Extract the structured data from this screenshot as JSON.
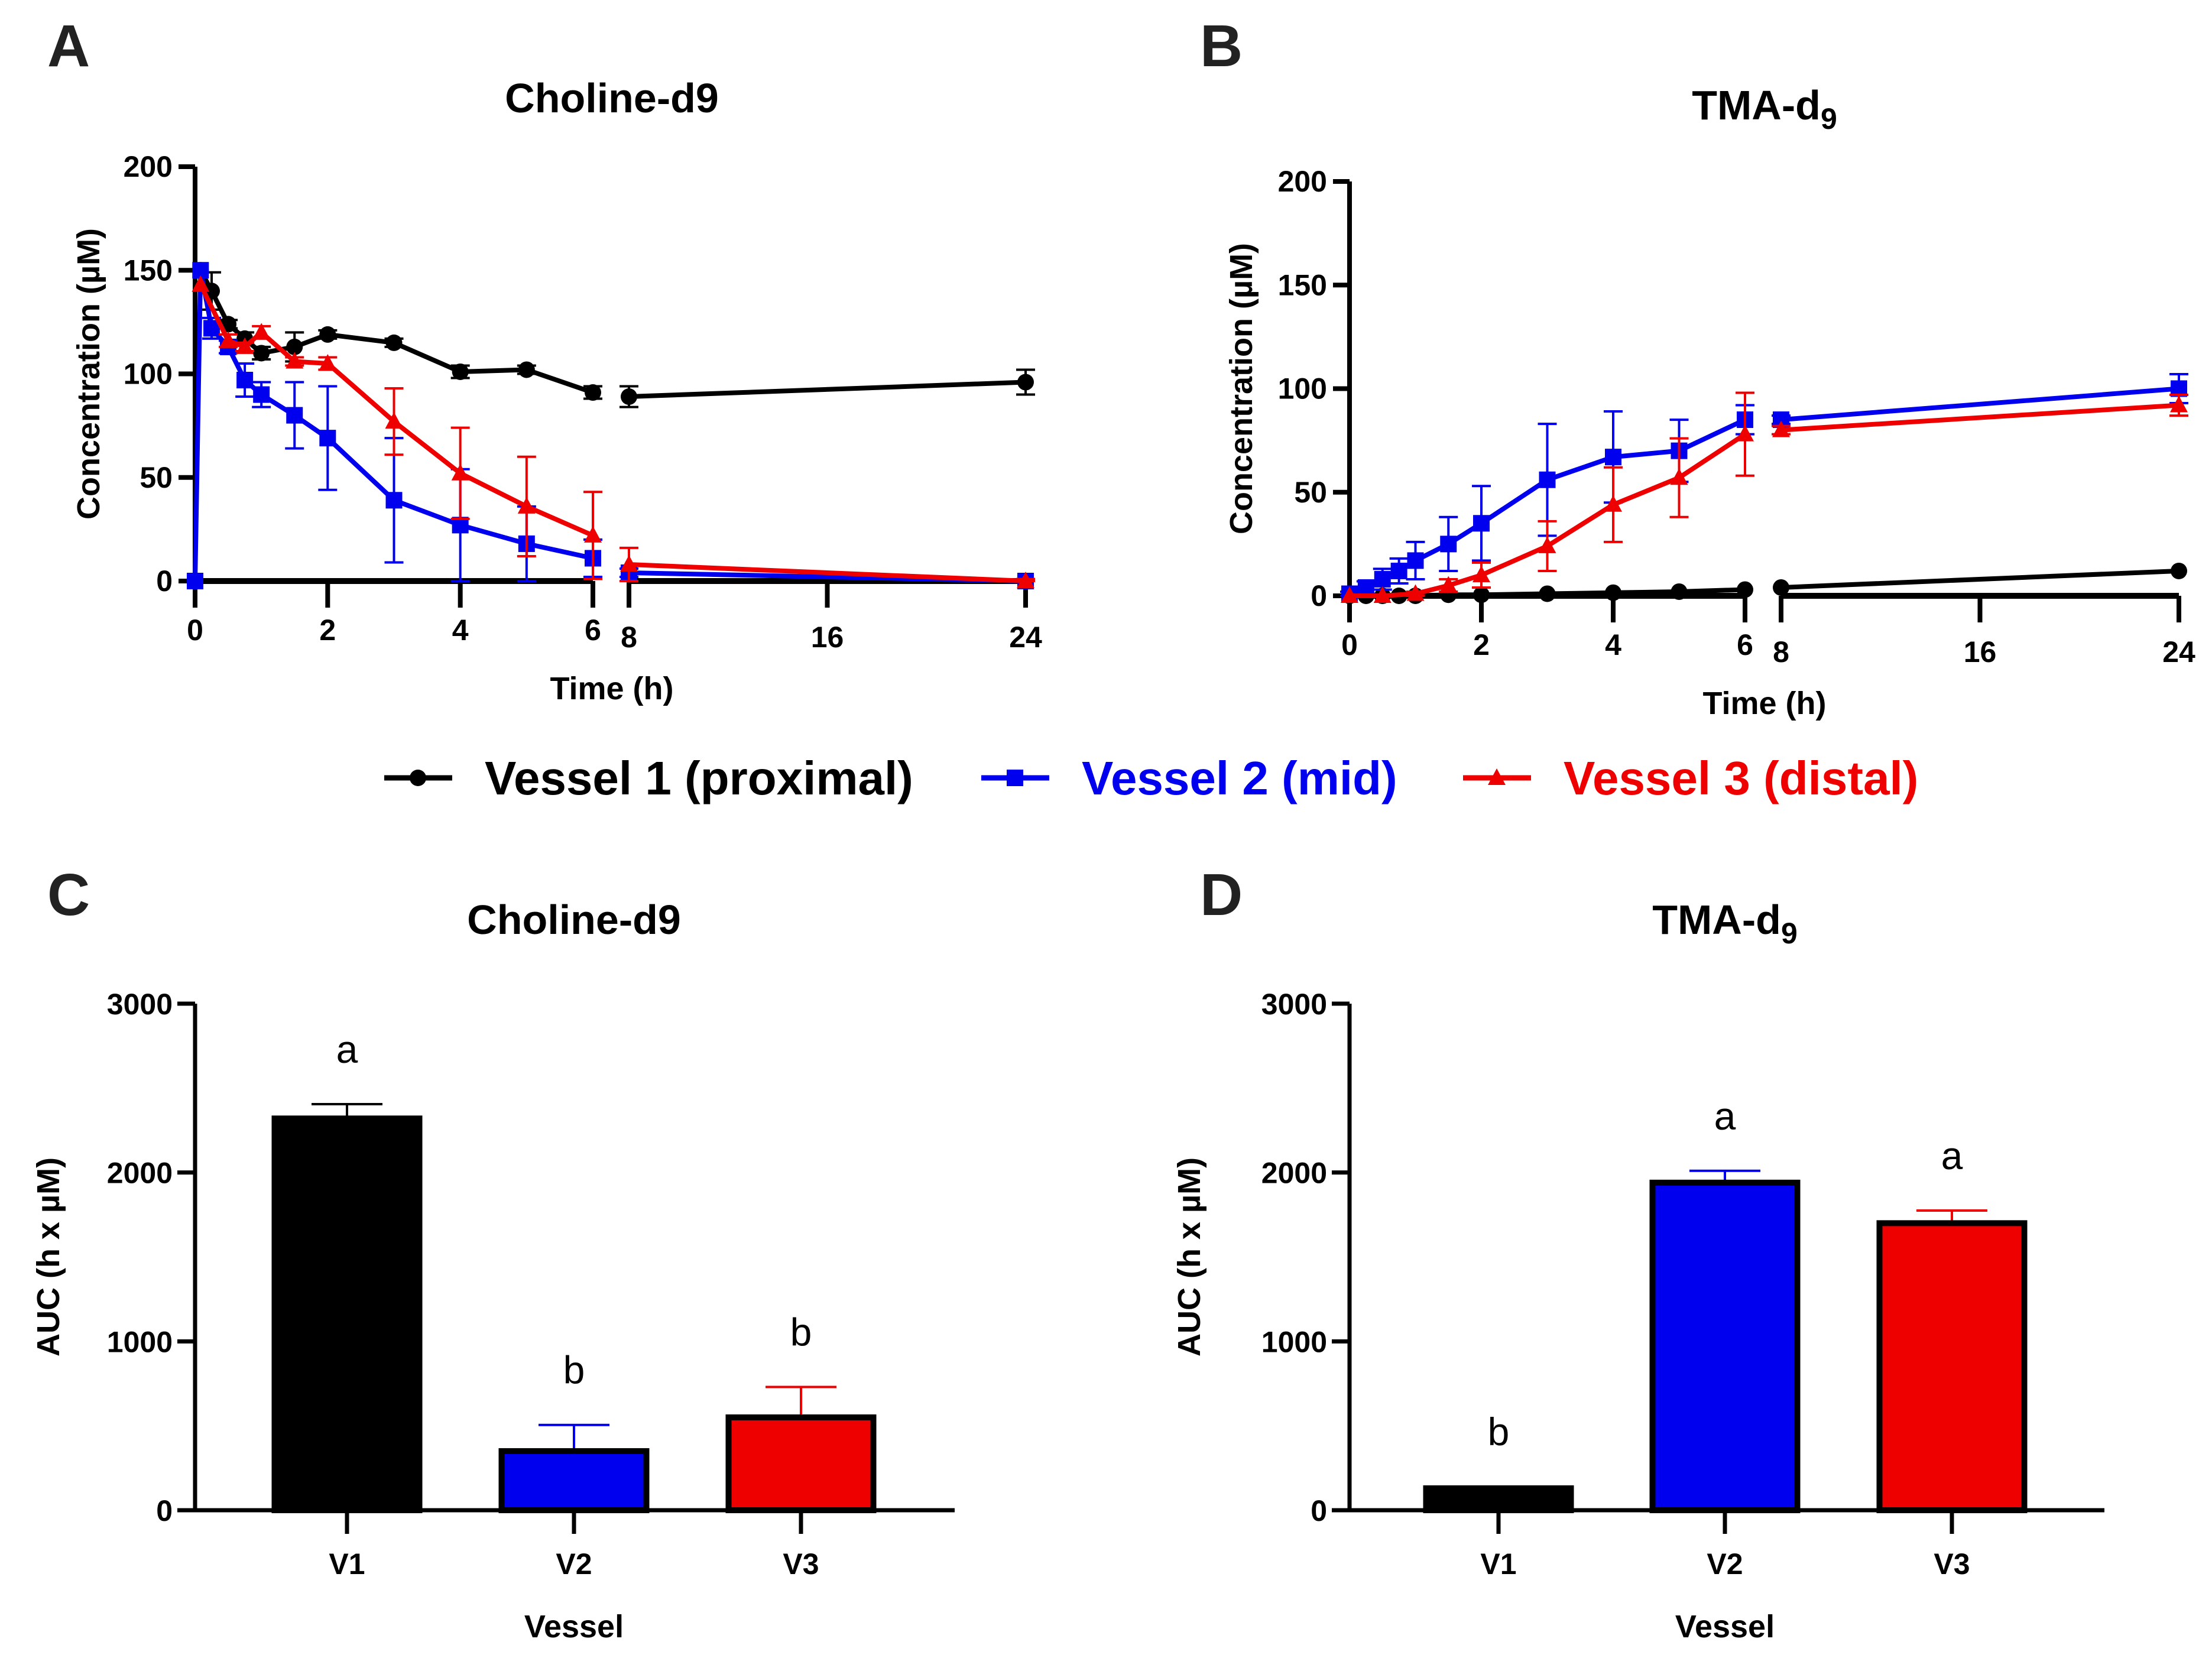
{
  "legend": {
    "items": [
      {
        "label": "Vessel 1 (proximal)",
        "color": "#000000",
        "marker": "circle"
      },
      {
        "label": "Vessel 2 (mid)",
        "color": "#0000ee",
        "marker": "square"
      },
      {
        "label": "Vessel 3 (distal)",
        "color": "#ee0000",
        "marker": "triangle"
      }
    ]
  },
  "chart_data": [
    {
      "panel": "A",
      "type": "line",
      "title": "Choline-d9",
      "title_sub": "",
      "xlabel": "Time (h)",
      "ylabel": "Concentration (µM)",
      "ylim": [
        0,
        200
      ],
      "yticks": [
        0,
        50,
        100,
        150,
        200
      ],
      "xticks_left": [
        0,
        2,
        4,
        6
      ],
      "xticks_right": [
        8,
        16,
        24
      ],
      "x_break": [
        6,
        8
      ],
      "grid": false,
      "legend": "below",
      "series": [
        {
          "name": "Vessel 1 (proximal)",
          "color": "#000000",
          "marker": "circle",
          "x": [
            0.083,
            0.25,
            0.5,
            0.75,
            1,
            1.5,
            2,
            3,
            4,
            5,
            6,
            8,
            24
          ],
          "y": [
            150,
            140,
            124,
            117,
            110,
            113,
            119,
            115,
            101,
            102,
            91,
            89,
            96
          ],
          "err": [
            0,
            9,
            2,
            3,
            3,
            7,
            2,
            2,
            3,
            2,
            3,
            5,
            6
          ]
        },
        {
          "name": "Vessel 2 (mid)",
          "color": "#0000ee",
          "marker": "square",
          "x": [
            0,
            0.083,
            0.25,
            0.5,
            0.75,
            1,
            1.5,
            2,
            3,
            4,
            5,
            6,
            8,
            24
          ],
          "y": [
            0,
            150,
            122,
            113,
            97,
            90,
            80,
            69,
            39,
            27,
            18,
            11,
            4,
            0
          ],
          "err": [
            0,
            0,
            5,
            3,
            8,
            6,
            16,
            25,
            30,
            27,
            18,
            9,
            2,
            1
          ]
        },
        {
          "name": "Vessel 3 (distal)",
          "color": "#ee0000",
          "marker": "triangle",
          "x": [
            0.083,
            0.5,
            0.75,
            1,
            1.5,
            2,
            3,
            4,
            5,
            6,
            8,
            24
          ],
          "y": [
            143,
            116,
            113,
            120,
            106,
            105,
            77,
            52,
            36,
            22,
            8,
            0
          ],
          "err": [
            0,
            3,
            2,
            3,
            2,
            3,
            16,
            22,
            24,
            21,
            8,
            1
          ]
        }
      ]
    },
    {
      "panel": "B",
      "type": "line",
      "title": "TMA-d",
      "title_sub": "9",
      "xlabel": "Time (h)",
      "ylabel": "Concentration (µM)",
      "ylim": [
        0,
        200
      ],
      "yticks": [
        0,
        50,
        100,
        150,
        200
      ],
      "xticks_left": [
        0,
        2,
        4,
        6
      ],
      "xticks_right": [
        8,
        16,
        24
      ],
      "x_break": [
        6,
        8
      ],
      "grid": false,
      "legend": "below",
      "series": [
        {
          "name": "Vessel 1 (proximal)",
          "color": "#000000",
          "marker": "circle",
          "x": [
            0,
            0.25,
            0.5,
            0.75,
            1,
            1.5,
            2,
            3,
            4,
            5,
            6,
            8,
            24
          ],
          "y": [
            0,
            0,
            0,
            0,
            0,
            0.5,
            0.5,
            1,
            1.5,
            2,
            3,
            4,
            12
          ],
          "err": [
            0,
            0,
            0,
            0,
            0,
            0,
            0,
            0,
            0,
            0,
            0,
            0,
            0
          ]
        },
        {
          "name": "Vessel 2 (mid)",
          "color": "#0000ee",
          "marker": "square",
          "x": [
            0,
            0.25,
            0.5,
            0.75,
            1,
            1.5,
            2,
            3,
            4,
            5,
            6,
            8,
            24
          ],
          "y": [
            1,
            4,
            8,
            12,
            17,
            25,
            35,
            56,
            67,
            70,
            85,
            85,
            100
          ],
          "err": [
            1,
            3,
            5,
            6,
            9,
            13,
            18,
            27,
            22,
            15,
            7,
            2,
            7
          ]
        },
        {
          "name": "Vessel 3 (distal)",
          "color": "#ee0000",
          "marker": "triangle",
          "x": [
            0,
            0.5,
            1,
            1.5,
            2,
            3,
            4,
            5,
            6,
            8,
            24
          ],
          "y": [
            0,
            0,
            1,
            5,
            10,
            24,
            44,
            57,
            78,
            80,
            92
          ],
          "err": [
            0,
            0,
            1,
            3,
            6,
            12,
            18,
            19,
            20,
            2,
            5
          ]
        }
      ]
    },
    {
      "panel": "C",
      "type": "bar",
      "title": "Choline-d9",
      "title_sub": "",
      "xlabel": "Vessel",
      "ylabel": "AUC  (h x µM)",
      "ylim": [
        0,
        3000
      ],
      "yticks": [
        0,
        1000,
        2000,
        3000
      ],
      "categories": [
        "V1",
        "V2",
        "V3"
      ],
      "values": [
        2320,
        350,
        550
      ],
      "errors": [
        85,
        155,
        180
      ],
      "colors": [
        "#000000",
        "#0000ee",
        "#ee0000"
      ],
      "significance": [
        "a",
        "b",
        "b"
      ]
    },
    {
      "panel": "D",
      "type": "bar",
      "title": "TMA-d",
      "title_sub": "9",
      "xlabel": "Vessel",
      "ylabel": "AUC  (h x µM)",
      "ylim": [
        0,
        3000
      ],
      "yticks": [
        0,
        1000,
        2000,
        3000
      ],
      "categories": [
        "V1",
        "V2",
        "V3"
      ],
      "values": [
        130,
        1940,
        1700
      ],
      "errors": [
        10,
        70,
        75
      ],
      "colors": [
        "#000000",
        "#0000ee",
        "#ee0000"
      ],
      "significance": [
        "b",
        "a",
        "a"
      ]
    }
  ]
}
